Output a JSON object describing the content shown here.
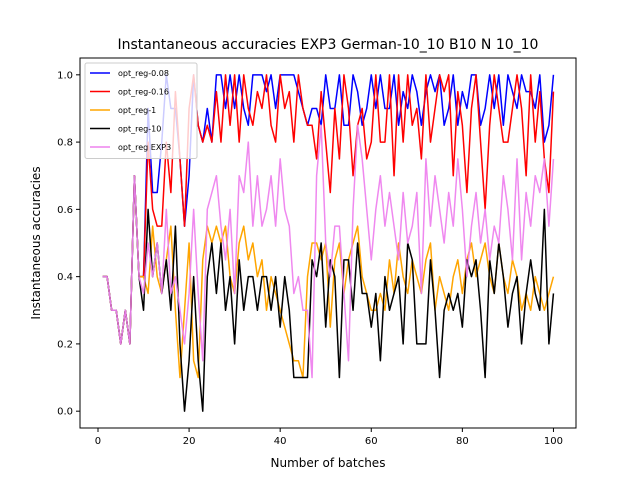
{
  "chart_data": {
    "type": "line",
    "title": "Instantaneous accuracies EXP3 German-10_10 B10 N 10_10",
    "xlabel": "Number of batches",
    "ylabel": "Instantaneous accuracies",
    "xlim": [
      -3.95,
      104.95
    ],
    "ylim": [
      -0.05,
      1.05
    ],
    "xticks": [
      0,
      20,
      40,
      60,
      80,
      100
    ],
    "xtick_labels": [
      "0",
      "20",
      "40",
      "60",
      "80",
      "100"
    ],
    "yticks": [
      0.0,
      0.2,
      0.4,
      0.6,
      0.8,
      1.0
    ],
    "ytick_labels": [
      "0.0",
      "0.2",
      "0.4",
      "0.6",
      "0.8",
      "1.0"
    ],
    "grid": false,
    "legend_position": "top-left",
    "x": [
      1,
      2,
      3,
      4,
      5,
      6,
      7,
      8,
      9,
      10,
      11,
      12,
      13,
      14,
      15,
      16,
      17,
      18,
      19,
      20,
      21,
      22,
      23,
      24,
      25,
      26,
      27,
      28,
      29,
      30,
      31,
      32,
      33,
      34,
      35,
      36,
      37,
      38,
      39,
      40,
      41,
      42,
      43,
      44,
      45,
      46,
      47,
      48,
      49,
      50,
      51,
      52,
      53,
      54,
      55,
      56,
      57,
      58,
      59,
      60,
      61,
      62,
      63,
      64,
      65,
      66,
      67,
      68,
      69,
      70,
      71,
      72,
      73,
      74,
      75,
      76,
      77,
      78,
      79,
      80,
      81,
      82,
      83,
      84,
      85,
      86,
      87,
      88,
      89,
      90,
      91,
      92,
      93,
      94,
      95,
      96,
      97,
      98,
      99,
      100
    ],
    "series": [
      {
        "name": "opt_reg-0.08",
        "color": "#0000ff",
        "values": [
          0.4,
          0.4,
          0.3,
          0.3,
          0.2,
          0.3,
          0.2,
          0.7,
          0.4,
          0.4,
          0.9,
          0.65,
          0.65,
          0.8,
          1.0,
          0.9,
          0.9,
          0.75,
          0.55,
          0.7,
          1.0,
          0.85,
          0.8,
          0.9,
          0.8,
          1.0,
          1.0,
          0.9,
          1.0,
          0.9,
          1.0,
          0.9,
          0.85,
          1.0,
          1.0,
          1.0,
          0.95,
          1.0,
          0.9,
          1.0,
          1.0,
          1.0,
          1.0,
          0.95,
          0.9,
          0.85,
          0.9,
          0.9,
          0.85,
          1.0,
          0.9,
          0.9,
          1.0,
          0.85,
          0.85,
          1.0,
          0.95,
          0.85,
          0.9,
          1.0,
          0.9,
          1.0,
          0.9,
          0.9,
          1.0,
          0.85,
          0.95,
          0.9,
          1.0,
          0.95,
          0.85,
          0.95,
          1.0,
          0.95,
          1.0,
          0.85,
          0.9,
          1.0,
          0.85,
          0.95,
          0.9,
          1.0,
          1.0,
          0.85,
          0.9,
          1.0,
          0.9,
          1.0,
          0.85,
          1.0,
          0.95,
          0.9,
          1.0,
          0.95,
          0.95,
          0.9,
          1.0,
          0.8,
          0.85,
          1.0
        ]
      },
      {
        "name": "opt_reg-0.16",
        "color": "#ff0000",
        "values": [
          0.4,
          0.4,
          0.3,
          0.3,
          0.2,
          0.3,
          0.2,
          0.7,
          0.4,
          0.4,
          0.8,
          0.6,
          0.55,
          0.55,
          0.8,
          0.65,
          0.95,
          0.75,
          0.55,
          0.9,
          1.0,
          0.85,
          0.8,
          0.85,
          0.8,
          0.95,
          0.8,
          1.0,
          0.85,
          1.0,
          0.8,
          1.0,
          0.9,
          0.85,
          0.95,
          0.9,
          1.0,
          0.85,
          0.8,
          1.0,
          0.9,
          0.95,
          0.8,
          1.0,
          0.9,
          0.85,
          0.85,
          0.75,
          0.95,
          0.8,
          0.65,
          0.9,
          0.75,
          1.0,
          0.9,
          0.7,
          0.85,
          0.9,
          0.75,
          0.8,
          1.0,
          0.8,
          0.8,
          1.0,
          0.7,
          1.0,
          0.8,
          1.0,
          0.85,
          0.9,
          0.75,
          1.0,
          0.8,
          0.9,
          1.0,
          0.95,
          1.0,
          0.7,
          0.95,
          0.85,
          0.65,
          0.9,
          1.0,
          0.8,
          0.6,
          0.85,
          1.0,
          0.9,
          0.8,
          0.8,
          0.9,
          1.0,
          0.9,
          0.7,
          1.0,
          0.8,
          0.95,
          0.75,
          0.65,
          0.95
        ]
      },
      {
        "name": "opt_reg-1",
        "color": "#ffa500",
        "values": [
          0.4,
          0.4,
          0.3,
          0.3,
          0.2,
          0.3,
          0.2,
          0.7,
          0.4,
          0.4,
          0.35,
          0.55,
          0.4,
          0.35,
          0.45,
          0.55,
          0.3,
          0.1,
          0.3,
          0.5,
          0.15,
          0.1,
          0.45,
          0.55,
          0.5,
          0.55,
          0.5,
          0.55,
          0.4,
          0.35,
          0.5,
          0.55,
          0.45,
          0.5,
          0.4,
          0.45,
          0.3,
          0.4,
          0.35,
          0.3,
          0.25,
          0.2,
          0.15,
          0.15,
          0.1,
          0.4,
          0.5,
          0.5,
          0.45,
          0.5,
          0.25,
          0.45,
          0.5,
          0.35,
          0.45,
          0.5,
          0.55,
          0.4,
          0.35,
          0.3,
          0.3,
          0.35,
          0.3,
          0.45,
          0.35,
          0.5,
          0.4,
          0.35,
          0.45,
          0.4,
          0.35,
          0.45,
          0.5,
          0.3,
          0.4,
          0.35,
          0.3,
          0.4,
          0.45,
          0.35,
          0.45,
          0.5,
          0.4,
          0.45,
          0.5,
          0.4,
          0.35,
          0.5,
          0.4,
          0.35,
          0.45,
          0.4,
          0.3,
          0.35,
          0.3,
          0.4,
          0.35,
          0.3,
          0.35,
          0.4
        ]
      },
      {
        "name": "opt_reg-10",
        "color": "#000000",
        "values": [
          0.4,
          0.4,
          0.3,
          0.3,
          0.2,
          0.3,
          0.2,
          0.7,
          0.4,
          0.3,
          0.6,
          0.4,
          0.5,
          0.35,
          0.45,
          0.3,
          0.55,
          0.2,
          0.0,
          0.15,
          0.4,
          0.15,
          0.0,
          0.4,
          0.5,
          0.35,
          0.5,
          0.3,
          0.4,
          0.2,
          0.45,
          0.3,
          0.4,
          0.4,
          0.3,
          0.4,
          0.4,
          0.3,
          0.4,
          0.25,
          0.4,
          0.3,
          0.1,
          0.1,
          0.1,
          0.1,
          0.45,
          0.4,
          0.5,
          0.25,
          0.45,
          0.4,
          0.1,
          0.45,
          0.45,
          0.3,
          0.5,
          0.35,
          0.35,
          0.25,
          0.35,
          0.15,
          0.4,
          0.3,
          0.35,
          0.4,
          0.2,
          0.5,
          0.45,
          0.2,
          0.2,
          0.2,
          0.45,
          0.3,
          0.1,
          0.3,
          0.35,
          0.3,
          0.35,
          0.25,
          0.45,
          0.4,
          0.45,
          0.3,
          0.1,
          0.45,
          0.35,
          0.5,
          0.4,
          0.25,
          0.35,
          0.4,
          0.2,
          0.35,
          0.45,
          0.35,
          0.3,
          0.6,
          0.2,
          0.35
        ]
      },
      {
        "name": "opt_reg EXP3",
        "color": "#ee82ee",
        "values": [
          0.4,
          0.4,
          0.3,
          0.3,
          0.2,
          0.3,
          0.2,
          0.7,
          0.4,
          0.35,
          0.5,
          0.4,
          0.5,
          0.35,
          0.6,
          0.35,
          0.4,
          0.3,
          0.2,
          0.35,
          0.6,
          0.35,
          0.15,
          0.6,
          0.65,
          0.7,
          0.55,
          0.45,
          0.6,
          0.35,
          0.7,
          0.65,
          0.8,
          0.55,
          0.7,
          0.55,
          0.6,
          0.7,
          0.55,
          0.75,
          0.6,
          0.55,
          0.35,
          0.4,
          0.3,
          0.3,
          0.1,
          0.7,
          0.85,
          0.5,
          0.4,
          0.55,
          0.55,
          0.35,
          0.15,
          0.6,
          0.85,
          0.75,
          0.6,
          0.45,
          0.6,
          0.7,
          0.55,
          0.65,
          0.55,
          0.45,
          0.65,
          0.5,
          0.55,
          0.65,
          0.35,
          0.75,
          0.55,
          0.7,
          0.6,
          0.5,
          0.65,
          0.55,
          0.75,
          0.6,
          0.4,
          0.55,
          0.65,
          0.5,
          0.6,
          0.45,
          0.55,
          0.5,
          0.7,
          0.6,
          0.45,
          0.75,
          0.45,
          0.65,
          0.55,
          0.7,
          0.65,
          0.75,
          0.55,
          0.75
        ]
      }
    ]
  }
}
